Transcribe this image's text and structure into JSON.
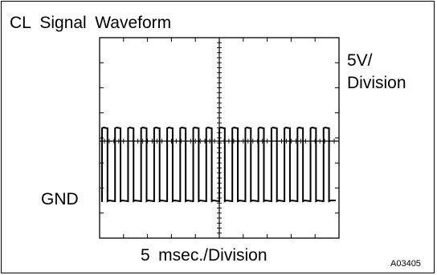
{
  "title": "CL Signal Waveform",
  "vertical_scale": {
    "value": "5V/",
    "unit": "Division"
  },
  "ground_label": "GND",
  "time_scale": "5 msec./Division",
  "figure_code": "A03405",
  "waveform": {
    "type": "square",
    "cycles": 18,
    "high_level": "approx. 5 V",
    "low_level": "0 V (GND)"
  }
}
